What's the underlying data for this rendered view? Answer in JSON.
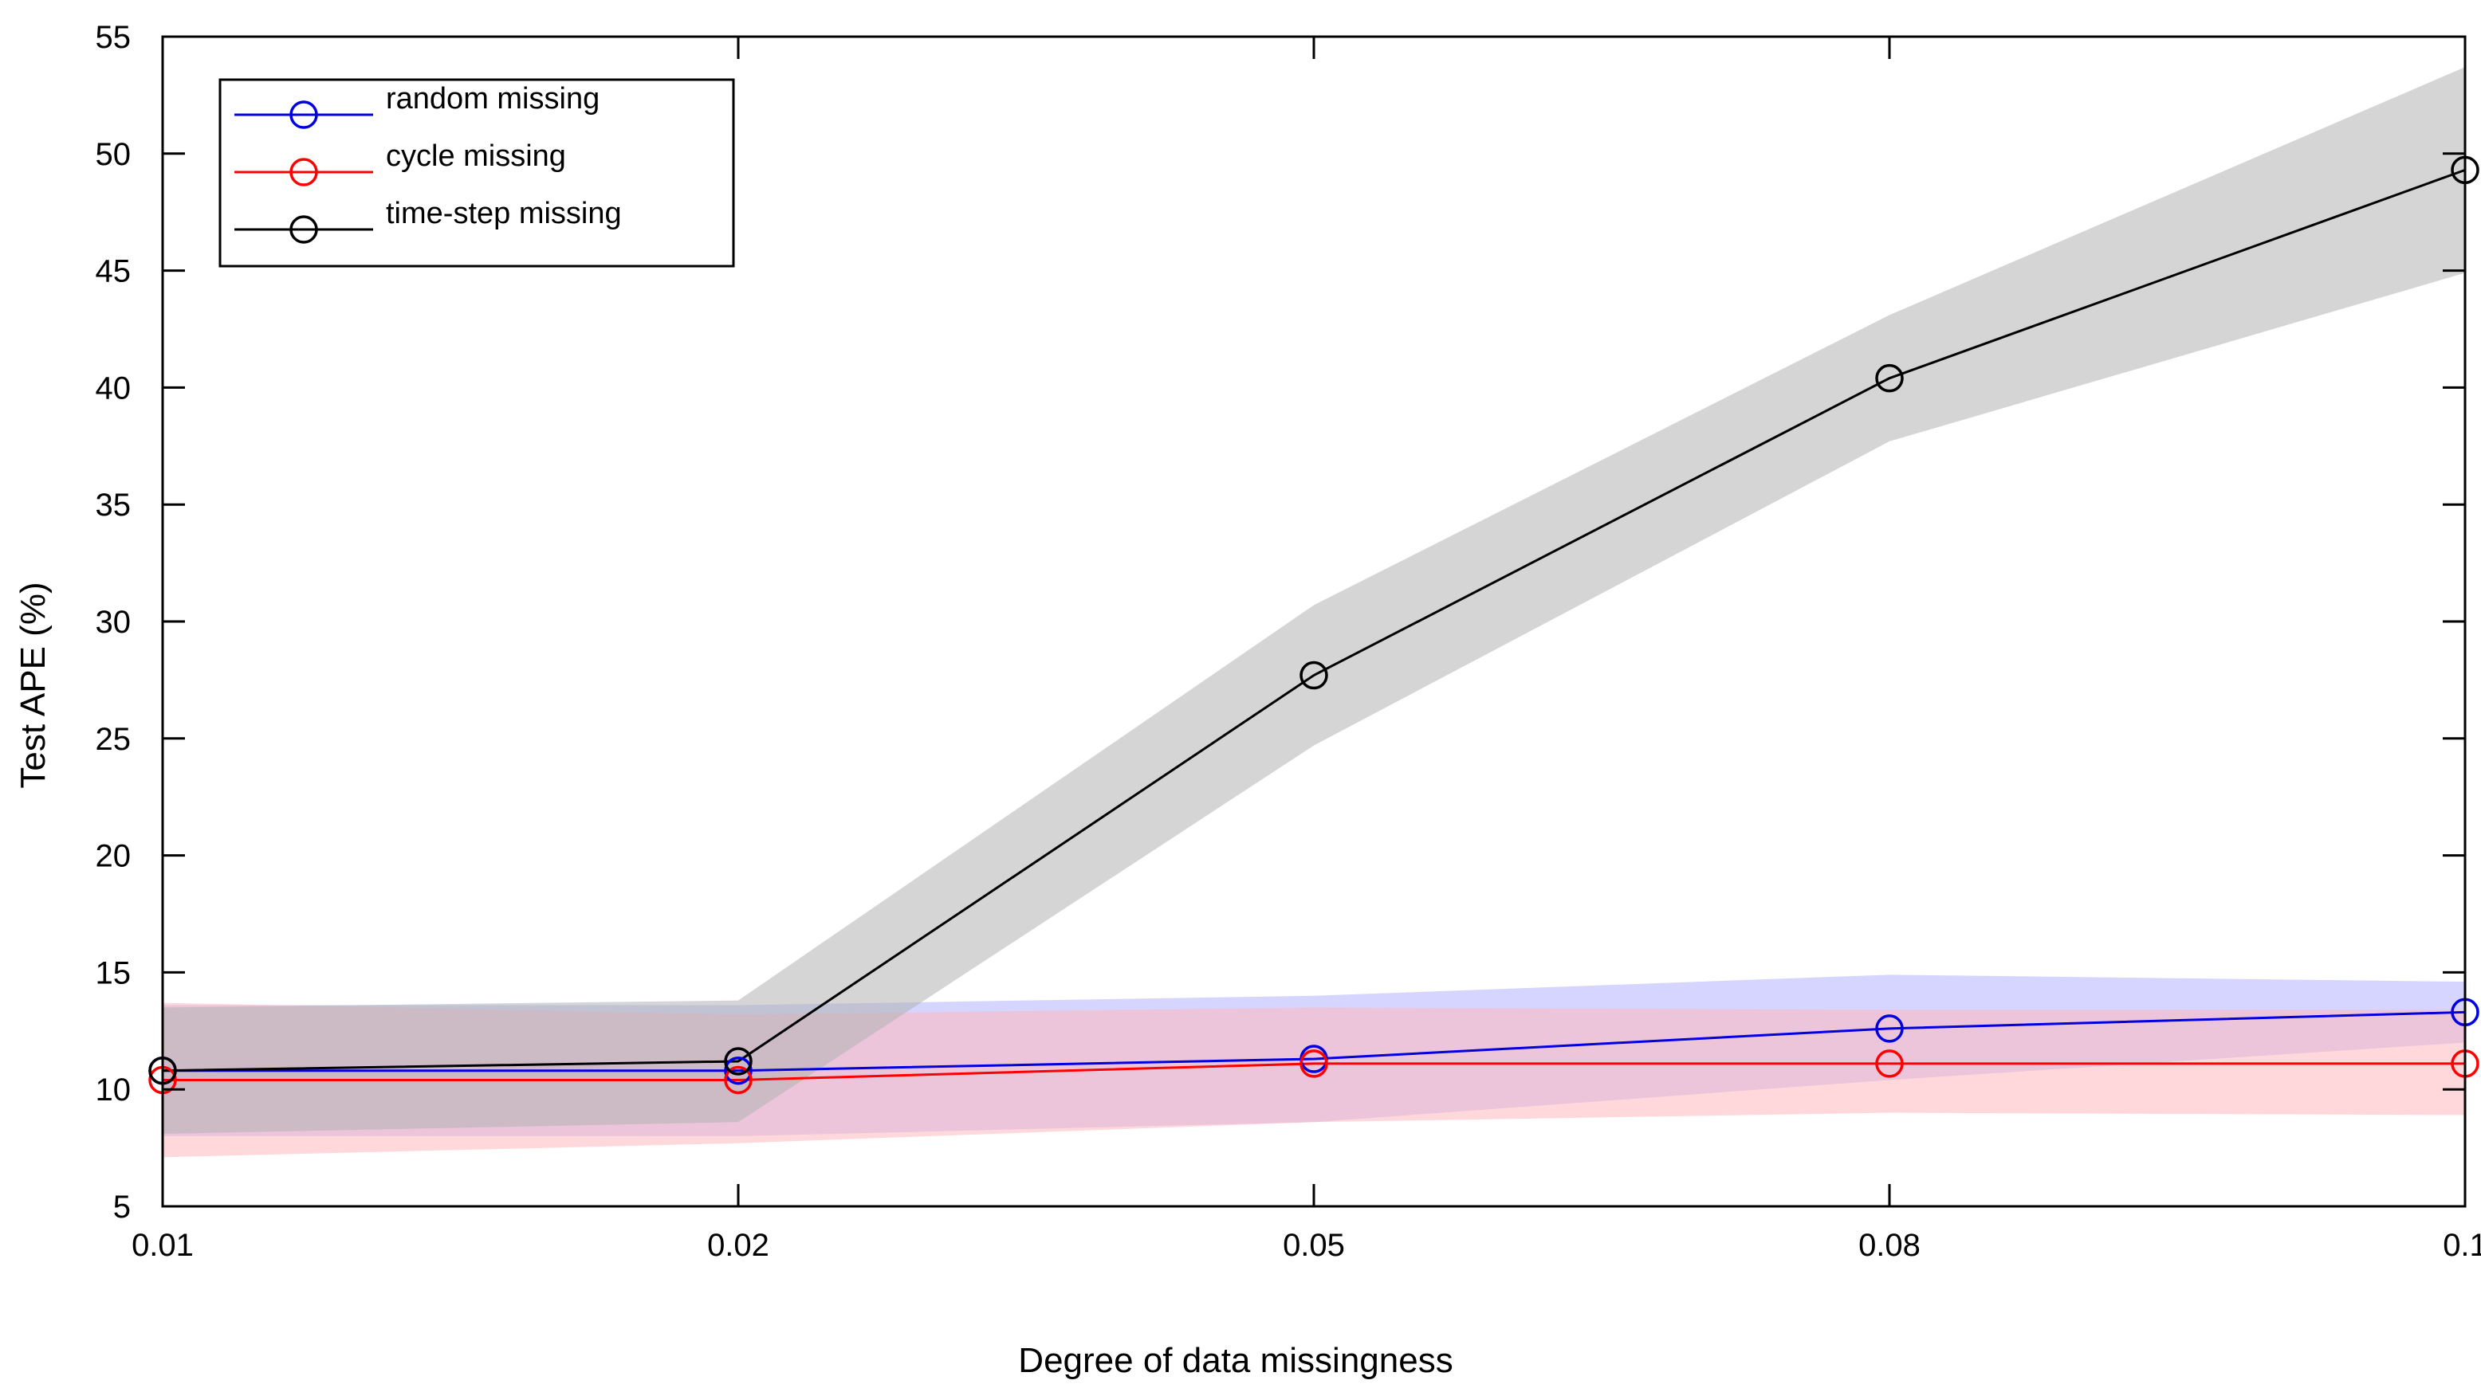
{
  "chart_data": {
    "type": "line",
    "title": "",
    "xlabel": "Degree of data missingness",
    "ylabel": "Test APE (%)",
    "categories": [
      "0.01",
      "0.02",
      "0.05",
      "0.08",
      "0.1"
    ],
    "ylim": [
      5,
      55
    ],
    "yticks": [
      5,
      10,
      15,
      20,
      25,
      30,
      35,
      40,
      45,
      50,
      55
    ],
    "grid": false,
    "legend_position": "top-left",
    "series": [
      {
        "name": "random missing",
        "color": "#0000e0",
        "band_color": "#b3b3ff",
        "values": [
          10.8,
          10.8,
          11.3,
          12.6,
          13.3
        ],
        "lower": [
          8.0,
          8.0,
          8.6,
          10.4,
          12.0
        ],
        "upper": [
          13.6,
          13.6,
          14.0,
          14.9,
          14.6
        ]
      },
      {
        "name": "cycle missing",
        "color": "#ff0000",
        "band_color": "#ffb8bd",
        "values": [
          10.4,
          10.4,
          11.1,
          11.1,
          11.1
        ],
        "lower": [
          7.1,
          7.7,
          8.6,
          9.0,
          8.9
        ],
        "upper": [
          13.7,
          13.2,
          13.5,
          13.4,
          13.4
        ]
      },
      {
        "name": "time-step missing",
        "color": "#000000",
        "band_color": "#b3b3b3",
        "values": [
          10.8,
          11.2,
          27.7,
          40.4,
          49.3
        ],
        "lower": [
          8.1,
          8.6,
          24.7,
          37.7,
          44.9
        ],
        "upper": [
          13.5,
          13.8,
          30.7,
          43.1,
          53.7
        ]
      }
    ]
  }
}
